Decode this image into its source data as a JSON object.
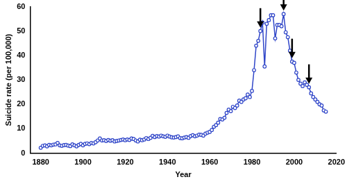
{
  "chart_data": {
    "type": "line",
    "x_label": "Year",
    "y_label": "Suicide rate (per 100,000)",
    "x": [
      1880,
      1881,
      1882,
      1883,
      1884,
      1885,
      1886,
      1887,
      1888,
      1889,
      1890,
      1891,
      1892,
      1893,
      1894,
      1895,
      1896,
      1897,
      1898,
      1899,
      1900,
      1901,
      1902,
      1903,
      1904,
      1905,
      1906,
      1907,
      1908,
      1909,
      1910,
      1911,
      1912,
      1913,
      1914,
      1915,
      1916,
      1917,
      1918,
      1919,
      1920,
      1921,
      1922,
      1923,
      1924,
      1925,
      1926,
      1927,
      1928,
      1929,
      1930,
      1931,
      1932,
      1933,
      1934,
      1935,
      1936,
      1937,
      1938,
      1939,
      1940,
      1941,
      1942,
      1943,
      1944,
      1945,
      1946,
      1947,
      1948,
      1949,
      1950,
      1951,
      1952,
      1953,
      1954,
      1955,
      1956,
      1957,
      1958,
      1959,
      1960,
      1961,
      1962,
      1963,
      1964,
      1965,
      1966,
      1967,
      1968,
      1969,
      1970,
      1971,
      1972,
      1973,
      1974,
      1975,
      1976,
      1977,
      1978,
      1979,
      1980,
      1981,
      1982,
      1983,
      1984,
      1985,
      1986,
      1987,
      1988,
      1989,
      1990,
      1991,
      1992,
      1993,
      1994,
      1995,
      1996,
      1997,
      1998,
      1999,
      2000,
      2001,
      2002,
      2003,
      2004,
      2005,
      2006,
      2007,
      2008,
      2009,
      2010,
      2011,
      2012,
      2013,
      2014,
      2015
    ],
    "values": [
      2.2,
      3,
      3.2,
      2.8,
      3.4,
      3.2,
      3.5,
      3.6,
      4.2,
      3.2,
      3,
      3.3,
      3.4,
      3.1,
      2.9,
      3.6,
      3.2,
      2.8,
      3.4,
      3.8,
      3.2,
      3.8,
      4,
      3.7,
      4.2,
      4,
      4.5,
      5.2,
      6,
      5.2,
      5.3,
      5,
      5.4,
      5.1,
      5.3,
      4.8,
      5,
      5.2,
      5.4,
      5.6,
      5.3,
      5.6,
      5.4,
      6,
      5.8,
      5.2,
      4.8,
      5.5,
      5.3,
      5.6,
      6.2,
      5.8,
      6.3,
      7.1,
      6.6,
      7,
      6.8,
      7.2,
      6.9,
      6.7,
      7.2,
      6.8,
      6.5,
      6.4,
      6.6,
      6.9,
      6.2,
      6.1,
      6.4,
      6.6,
      6.3,
      7,
      7.4,
      6.9,
      7.2,
      7.6,
      7.5,
      7.2,
      8,
      8.4,
      8.7,
      9.5,
      10.8,
      11.5,
      12.5,
      14,
      13.8,
      14.5,
      16.5,
      17.8,
      17.2,
      19,
      18.5,
      19.5,
      21.5,
      21,
      22,
      22.5,
      24,
      23,
      25.5,
      34,
      44,
      46,
      50,
      53.5,
      35.5,
      53,
      54.5,
      56.5,
      56.5,
      47,
      52.5,
      52.5,
      52,
      57,
      49.5,
      47.5,
      42,
      37.5,
      37,
      33,
      30,
      28.5,
      27.5,
      29,
      28,
      27,
      24.5,
      23,
      22,
      21,
      20,
      19.5,
      17.5,
      17
    ],
    "color": "#2f45c8",
    "marker": "circle",
    "line_style": "solid",
    "arrows_x": [
      1984,
      1995,
      1999,
      2007
    ],
    "xlim": [
      1875,
      2020
    ],
    "xticks": [
      1880,
      1900,
      1920,
      1940,
      1960,
      1980,
      2000,
      2020
    ],
    "ylim": [
      0,
      60
    ],
    "yticks": [
      0,
      10,
      20,
      30,
      40,
      50,
      60
    ],
    "grid": false
  }
}
